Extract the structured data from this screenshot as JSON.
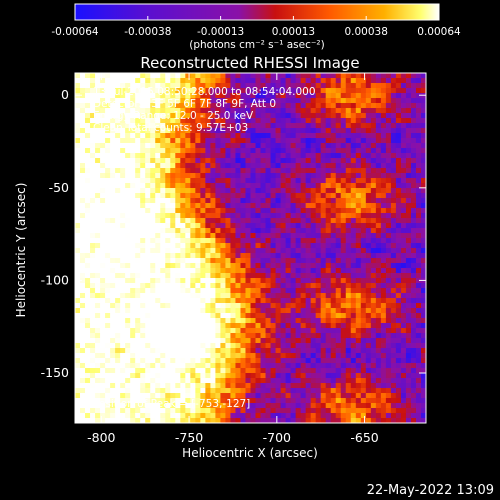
{
  "colorbar": {
    "ticks": [
      "-0.00064",
      "-0.00038",
      "-0.00013",
      "0.00013",
      "0.00038",
      "0.00064"
    ],
    "units": "(photons cm⁻² s⁻¹ asec⁻²)",
    "colors": [
      "#1a10ff",
      "#5a0fd0",
      "#8a10a8",
      "#c81010",
      "#ff5a00",
      "#ffb000",
      "#ffff70",
      "#ffffff"
    ]
  },
  "chart_data": {
    "type": "heatmap",
    "title": "Reconstructed RHESSI Image",
    "xlabel": "Heliocentric X (arcsec)",
    "ylabel": "Heliocentric Y (arcsec)",
    "xlim": [
      -815,
      -615
    ],
    "ylim": [
      -177,
      12
    ],
    "xticks": [
      -800,
      -750,
      -700,
      -650
    ],
    "yticks": [
      0,
      -50,
      -100,
      -150
    ],
    "value_range": [
      -0.00064,
      0.00064
    ],
    "peak_xy": [
      -753,
      -127
    ],
    "annotations": {
      "time_range": "13-Jul-2015 08:50:28.000 to 08:54:04.000",
      "detectors": "Detectors: 3F 5F 6F 7F 8F 9F, Att 0",
      "energy": "Energy Range: 12.0 - 25.0 keV",
      "clean": "Clean     Total counts: 9.57E+03",
      "peak": "Position of Peak = [-753,-127]"
    }
  },
  "footer": {
    "date": "22-May-2022 13:09"
  }
}
